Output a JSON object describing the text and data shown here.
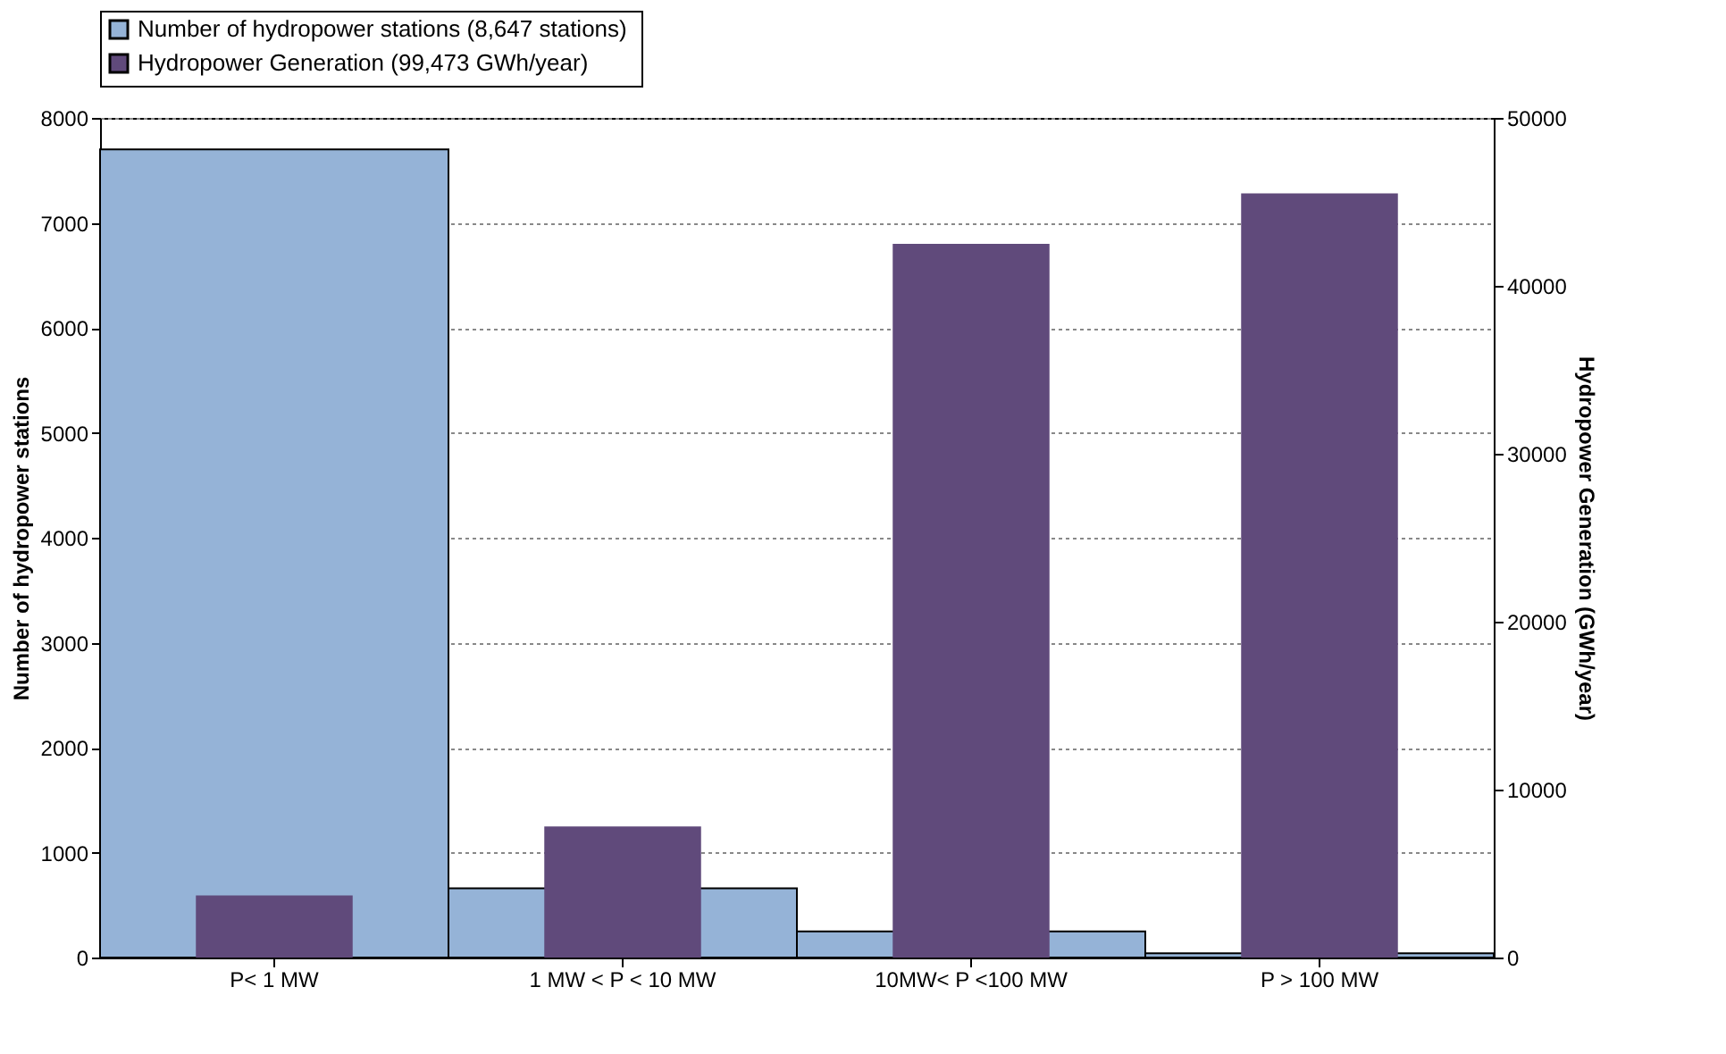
{
  "chart_data": {
    "type": "bar",
    "categories": [
      "P< 1 MW",
      "1 MW < P < 10 MW",
      "10MW< P <100 MW",
      "P > 100 MW"
    ],
    "series": [
      {
        "name": "Number of hydropower stations  (8,647 stations)",
        "color": "#95b3d7",
        "values": [
          7700,
          660,
          250,
          40
        ],
        "axis": "y"
      },
      {
        "name": "Hydropower Generation (99,473 GWh/year)",
        "color": "#604a7b",
        "values": [
          3700,
          7800,
          42500,
          45500
        ],
        "axis": "y2"
      }
    ],
    "ylabel": "Number of hydropower stations",
    "y2label": "Hydropower Generation (GWh/year)",
    "ylim": [
      0,
      8000
    ],
    "yticks": [
      0,
      1000,
      2000,
      3000,
      4000,
      5000,
      6000,
      7000,
      8000
    ],
    "y2lim": [
      0,
      50000
    ],
    "y2ticks": [
      0,
      10000,
      20000,
      30000,
      40000,
      50000
    ],
    "grid": "y",
    "legend": "top"
  }
}
